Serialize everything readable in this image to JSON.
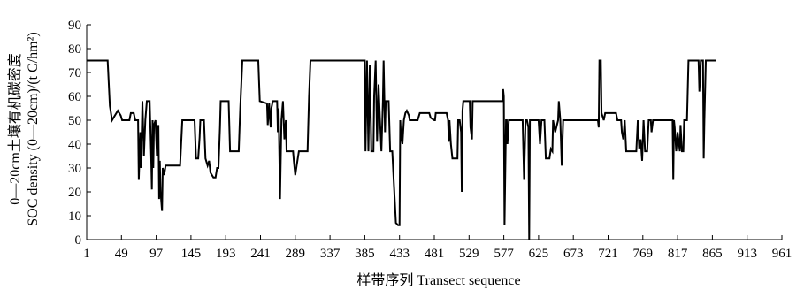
{
  "chart_data": {
    "type": "line",
    "title": "",
    "xlabel": "样带序列 Transect sequence",
    "ylabel_line1": "0—20cm土壤有机碳密度",
    "ylabel_line2": "SOC density (0—20cm)/(t C/hm²)",
    "xlim": [
      1,
      961
    ],
    "ylim": [
      0,
      90
    ],
    "x_ticks": [
      1,
      49,
      97,
      145,
      193,
      241,
      289,
      337,
      385,
      433,
      481,
      529,
      577,
      625,
      673,
      721,
      769,
      817,
      865,
      913,
      961
    ],
    "y_ticks": [
      0,
      10,
      20,
      30,
      40,
      50,
      60,
      70,
      80,
      90
    ],
    "grid": false,
    "series": [
      {
        "color": "#000000",
        "points": [
          [
            1,
            75
          ],
          [
            30,
            75
          ],
          [
            33,
            56
          ],
          [
            36,
            50
          ],
          [
            40,
            52
          ],
          [
            44,
            54
          ],
          [
            48,
            52
          ],
          [
            50,
            50
          ],
          [
            60,
            50
          ],
          [
            62,
            53
          ],
          [
            66,
            53
          ],
          [
            68,
            50
          ],
          [
            72,
            50
          ],
          [
            73,
            25
          ],
          [
            75,
            45
          ],
          [
            76,
            30
          ],
          [
            78,
            58
          ],
          [
            80,
            35
          ],
          [
            82,
            50
          ],
          [
            84,
            58
          ],
          [
            88,
            58
          ],
          [
            90,
            35
          ],
          [
            91,
            21
          ],
          [
            92,
            50
          ],
          [
            93,
            30
          ],
          [
            94,
            48
          ],
          [
            96,
            50
          ],
          [
            98,
            35
          ],
          [
            100,
            48
          ],
          [
            101,
            17
          ],
          [
            102,
            33
          ],
          [
            103,
            20
          ],
          [
            105,
            12
          ],
          [
            106,
            30
          ],
          [
            108,
            27
          ],
          [
            110,
            31
          ],
          [
            130,
            31
          ],
          [
            133,
            50
          ],
          [
            150,
            50
          ],
          [
            152,
            34
          ],
          [
            155,
            34
          ],
          [
            157,
            43
          ],
          [
            158,
            50
          ],
          [
            163,
            50
          ],
          [
            165,
            34
          ],
          [
            168,
            31
          ],
          [
            170,
            33
          ],
          [
            172,
            28
          ],
          [
            176,
            26
          ],
          [
            179,
            26
          ],
          [
            181,
            30
          ],
          [
            183,
            30
          ],
          [
            185,
            47
          ],
          [
            186,
            58
          ],
          [
            197,
            58
          ],
          [
            199,
            37
          ],
          [
            211,
            37
          ],
          [
            213,
            55
          ],
          [
            216,
            75
          ],
          [
            238,
            75
          ],
          [
            240,
            58
          ],
          [
            250,
            57
          ],
          [
            251,
            48
          ],
          [
            253,
            57
          ],
          [
            254,
            51
          ],
          [
            255,
            47
          ],
          [
            256,
            55
          ],
          [
            258,
            58
          ],
          [
            264,
            58
          ],
          [
            265,
            45
          ],
          [
            266,
            55
          ],
          [
            268,
            17
          ],
          [
            270,
            50
          ],
          [
            272,
            58
          ],
          [
            274,
            42
          ],
          [
            276,
            50
          ],
          [
            277,
            37
          ],
          [
            286,
            37
          ],
          [
            287,
            33
          ],
          [
            289,
            27
          ],
          [
            291,
            31
          ],
          [
            294,
            37
          ],
          [
            306,
            37
          ],
          [
            308,
            60
          ],
          [
            310,
            75
          ],
          [
            385,
            75
          ],
          [
            386,
            37
          ],
          [
            388,
            75
          ],
          [
            390,
            37
          ],
          [
            392,
            73
          ],
          [
            394,
            37
          ],
          [
            397,
            37
          ],
          [
            398,
            60
          ],
          [
            400,
            75
          ],
          [
            402,
            41
          ],
          [
            404,
            65
          ],
          [
            406,
            50
          ],
          [
            408,
            37
          ],
          [
            410,
            58
          ],
          [
            411,
            75
          ],
          [
            413,
            45
          ],
          [
            414,
            58
          ],
          [
            418,
            58
          ],
          [
            420,
            37
          ],
          [
            423,
            37
          ],
          [
            425,
            25
          ],
          [
            428,
            7
          ],
          [
            431,
            6
          ],
          [
            433,
            6
          ],
          [
            434,
            50
          ],
          [
            435,
            44
          ],
          [
            437,
            40
          ],
          [
            439,
            50
          ],
          [
            441,
            53
          ],
          [
            443,
            54
          ],
          [
            446,
            52
          ],
          [
            447,
            50
          ],
          [
            456,
            50
          ],
          [
            458,
            50
          ],
          [
            461,
            53
          ],
          [
            474,
            53
          ],
          [
            476,
            51
          ],
          [
            481,
            50
          ],
          [
            482,
            50
          ],
          [
            483,
            53
          ],
          [
            498,
            53
          ],
          [
            500,
            50
          ],
          [
            501,
            41
          ],
          [
            502,
            50
          ],
          [
            504,
            40
          ],
          [
            506,
            34
          ],
          [
            513,
            34
          ],
          [
            514,
            50
          ],
          [
            516,
            50
          ],
          [
            518,
            45
          ],
          [
            519,
            20
          ],
          [
            520,
            54
          ],
          [
            521,
            58
          ],
          [
            530,
            58
          ],
          [
            531,
            47
          ],
          [
            533,
            42
          ],
          [
            534,
            58
          ],
          [
            575,
            58
          ],
          [
            576,
            63
          ],
          [
            577,
            60
          ],
          [
            578,
            6
          ],
          [
            580,
            50
          ],
          [
            581,
            50
          ],
          [
            582,
            40
          ],
          [
            584,
            50
          ],
          [
            601,
            50
          ],
          [
            603,
            50
          ],
          [
            605,
            25
          ],
          [
            607,
            50
          ],
          [
            609,
            50
          ],
          [
            611,
            47
          ],
          [
            612,
            0
          ],
          [
            613,
            50
          ],
          [
            625,
            50
          ],
          [
            627,
            40
          ],
          [
            629,
            50
          ],
          [
            633,
            50
          ],
          [
            635,
            34
          ],
          [
            640,
            34
          ],
          [
            642,
            38
          ],
          [
            644,
            37
          ],
          [
            645,
            50
          ],
          [
            648,
            45
          ],
          [
            652,
            50
          ],
          [
            653,
            58
          ],
          [
            655,
            50
          ],
          [
            657,
            31
          ],
          [
            659,
            50
          ],
          [
            707,
            50
          ],
          [
            708,
            47
          ],
          [
            709,
            75
          ],
          [
            711,
            75
          ],
          [
            712,
            53
          ],
          [
            715,
            50
          ],
          [
            717,
            53
          ],
          [
            732,
            53
          ],
          [
            734,
            50
          ],
          [
            739,
            50
          ],
          [
            740,
            45
          ],
          [
            742,
            42
          ],
          [
            744,
            50
          ],
          [
            746,
            37
          ],
          [
            760,
            37
          ],
          [
            762,
            50
          ],
          [
            764,
            38
          ],
          [
            766,
            42
          ],
          [
            768,
            33
          ],
          [
            770,
            50
          ],
          [
            772,
            37
          ],
          [
            775,
            37
          ],
          [
            777,
            50
          ],
          [
            780,
            50
          ],
          [
            781,
            45
          ],
          [
            783,
            50
          ],
          [
            810,
            50
          ],
          [
            811,
            25
          ],
          [
            812,
            50
          ],
          [
            813,
            47
          ],
          [
            815,
            37
          ],
          [
            817,
            45
          ],
          [
            819,
            40
          ],
          [
            820,
            37
          ],
          [
            821,
            48
          ],
          [
            823,
            37
          ],
          [
            825,
            37
          ],
          [
            826,
            50
          ],
          [
            830,
            50
          ],
          [
            832,
            75
          ],
          [
            846,
            75
          ],
          [
            847,
            62
          ],
          [
            849,
            75
          ],
          [
            852,
            75
          ],
          [
            853,
            34
          ],
          [
            854,
            50
          ],
          [
            856,
            75
          ],
          [
            870,
            75
          ]
        ]
      }
    ]
  }
}
